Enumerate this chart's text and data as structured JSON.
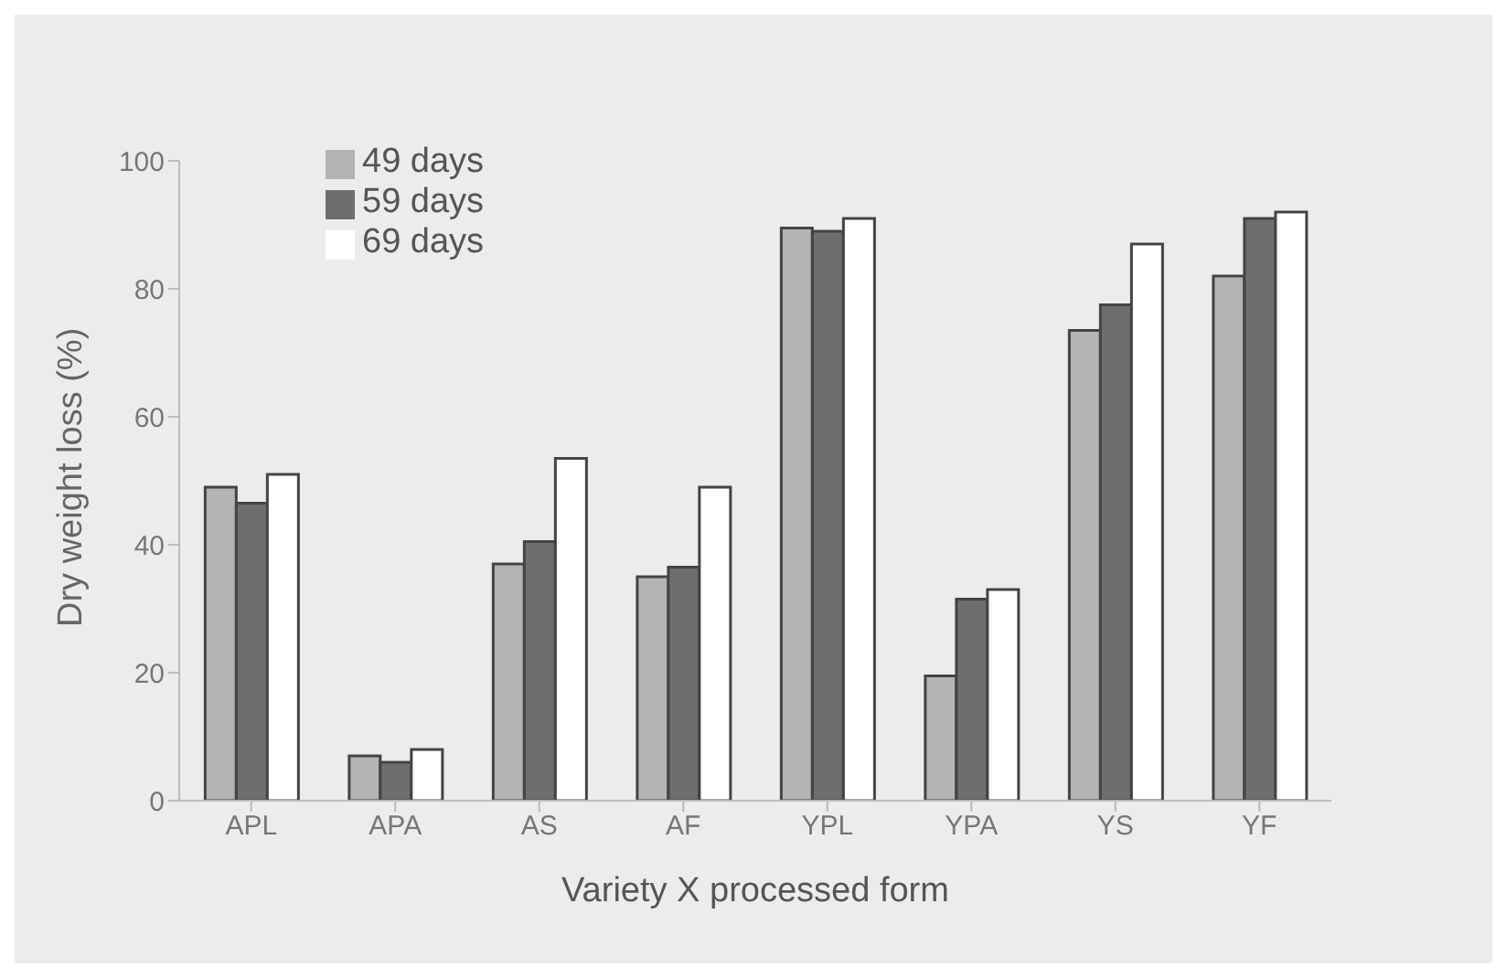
{
  "chart_data": {
    "type": "bar",
    "xlabel": "Variety X processed form",
    "ylabel": "Dry weight loss (%)",
    "categories": [
      "APL",
      "APA",
      "AS",
      "AF",
      "YPL",
      "YPA",
      "YS",
      "YF"
    ],
    "series": [
      {
        "name": "49 days",
        "color": "#b4b4b4",
        "values": [
          49,
          7,
          37,
          35,
          89.5,
          19.5,
          73.5,
          82
        ]
      },
      {
        "name": "59 days",
        "color": "#6e6e6e",
        "values": [
          46.5,
          6,
          40.5,
          36.5,
          89,
          31.5,
          77.5,
          91
        ]
      },
      {
        "name": "69 days",
        "color": "#ffffff",
        "values": [
          51,
          8,
          53.5,
          49,
          91,
          33,
          87,
          92
        ]
      }
    ],
    "ylim": [
      0,
      100
    ],
    "yticks": [
      0,
      20,
      40,
      60,
      80,
      100
    ],
    "legend": "top left"
  }
}
